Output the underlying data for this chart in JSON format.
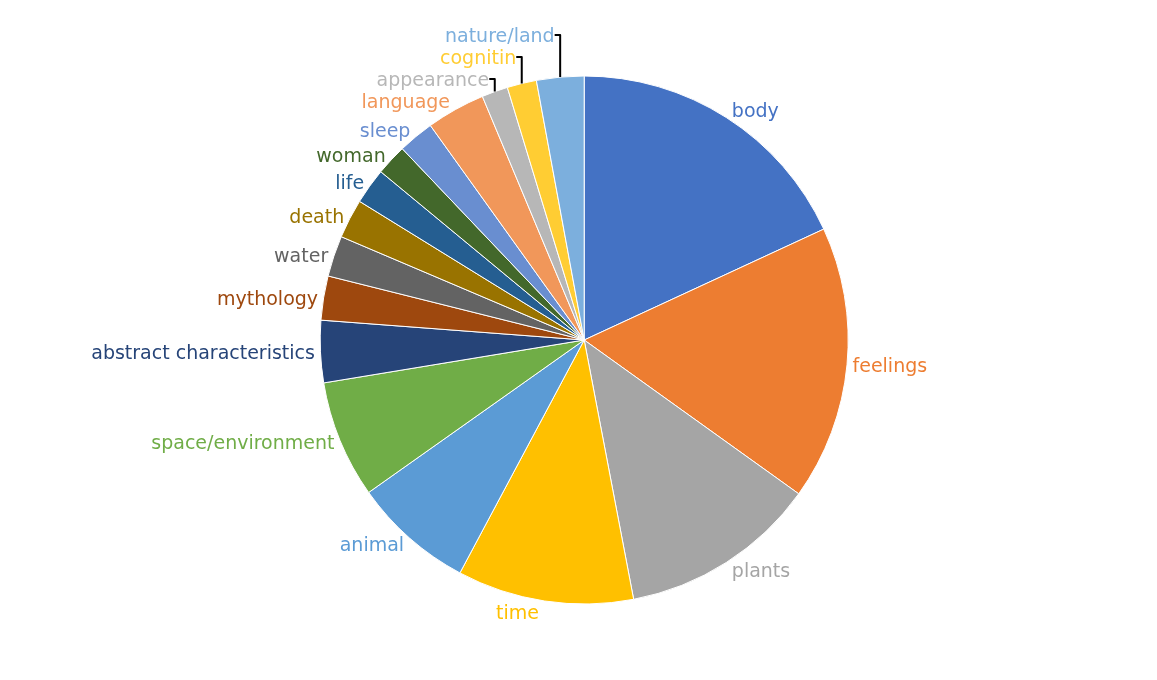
{
  "chart_data": {
    "type": "pie",
    "categories": [
      "body",
      "feelings",
      "plants",
      "time",
      "animal",
      "space/environment",
      "abstract characteristics",
      "mythology",
      "water",
      "death",
      "life",
      "woman",
      "sleep",
      "language",
      "appearance",
      "cognitin",
      "nature/land"
    ],
    "values": [
      18.1,
      16.8,
      12.1,
      10.8,
      7.4,
      7.2,
      3.8,
      2.7,
      2.5,
      2.4,
      2.2,
      1.9,
      2.2,
      3.6,
      1.6,
      1.8,
      2.9
    ],
    "colors": [
      "#4472c4",
      "#ed7d31",
      "#a5a5a5",
      "#ffc000",
      "#5b9bd5",
      "#70ad47",
      "#264478",
      "#9e480e",
      "#636363",
      "#997300",
      "#255e91",
      "#43682b",
      "#698ed0",
      "#f1975a",
      "#b7b7b7",
      "#ffcd33",
      "#7cafdd"
    ],
    "legend": false
  }
}
